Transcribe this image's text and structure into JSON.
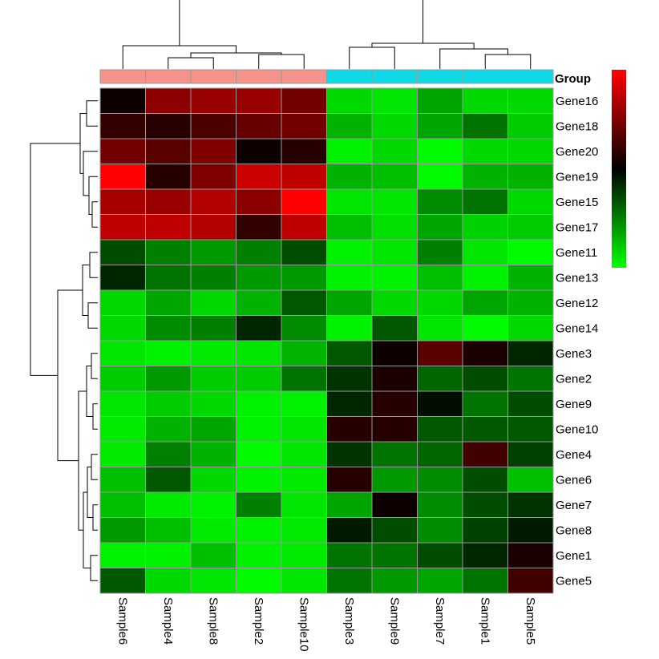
{
  "chart_data": {
    "type": "heatmap",
    "columns": [
      "Sample6",
      "Sample4",
      "Sample8",
      "Sample2",
      "Sample10",
      "Sample3",
      "Sample9",
      "Sample7",
      "Sample1",
      "Sample5"
    ],
    "rows": [
      "Gene16",
      "Gene18",
      "Gene20",
      "Gene19",
      "Gene15",
      "Gene17",
      "Gene11",
      "Gene13",
      "Gene12",
      "Gene14",
      "Gene3",
      "Gene2",
      "Gene9",
      "Gene10",
      "Gene4",
      "Gene6",
      "Gene7",
      "Gene8",
      "Gene1",
      "Gene5"
    ],
    "values": [
      [
        0.05,
        0.55,
        0.6,
        0.6,
        0.45,
        -0.85,
        -0.9,
        -0.65,
        -0.85,
        -0.85
      ],
      [
        0.2,
        0.15,
        0.3,
        0.4,
        0.45,
        -0.7,
        -0.85,
        -0.65,
        -0.45,
        -0.8
      ],
      [
        0.45,
        0.35,
        0.5,
        0.05,
        0.15,
        -0.95,
        -0.85,
        -0.98,
        -0.85,
        -0.85
      ],
      [
        1.0,
        0.15,
        0.5,
        0.8,
        0.75,
        -0.7,
        -0.75,
        -0.98,
        -0.7,
        -0.7
      ],
      [
        0.65,
        0.6,
        0.7,
        0.55,
        1.0,
        -0.9,
        -0.9,
        -0.55,
        -0.45,
        -0.85
      ],
      [
        0.75,
        0.75,
        0.7,
        0.2,
        0.75,
        -0.75,
        -0.88,
        -0.65,
        -0.82,
        -0.8
      ],
      [
        -0.3,
        -0.5,
        -0.6,
        -0.5,
        -0.3,
        -0.95,
        -0.9,
        -0.5,
        -0.9,
        -0.98
      ],
      [
        -0.15,
        -0.45,
        -0.5,
        -0.6,
        -0.6,
        -0.95,
        -0.95,
        -0.75,
        -0.95,
        -0.7
      ],
      [
        -0.85,
        -0.65,
        -0.85,
        -0.7,
        -0.35,
        -0.65,
        -0.85,
        -0.85,
        -0.65,
        -0.7
      ],
      [
        -0.85,
        -0.55,
        -0.5,
        -0.15,
        -0.55,
        -0.95,
        -0.35,
        -0.9,
        -0.98,
        -0.85
      ],
      [
        -0.9,
        -0.95,
        -0.92,
        -0.9,
        -0.7,
        -0.35,
        0.05,
        0.35,
        0.1,
        -0.15
      ],
      [
        -0.8,
        -0.6,
        -0.8,
        -0.8,
        -0.45,
        -0.2,
        0.1,
        -0.4,
        -0.3,
        -0.45
      ],
      [
        -0.9,
        -0.8,
        -0.85,
        -0.95,
        -0.95,
        -0.15,
        0.15,
        -0.05,
        -0.45,
        -0.3
      ],
      [
        -0.92,
        -0.7,
        -0.65,
        -0.95,
        -0.9,
        0.15,
        0.15,
        -0.35,
        -0.35,
        -0.35
      ],
      [
        -0.92,
        -0.5,
        -0.7,
        -0.98,
        -0.9,
        -0.2,
        -0.45,
        -0.4,
        0.25,
        -0.25
      ],
      [
        -0.75,
        -0.35,
        -0.85,
        -0.95,
        -0.92,
        0.15,
        -0.6,
        -0.55,
        -0.3,
        -0.75
      ],
      [
        -0.75,
        -0.92,
        -0.95,
        -0.5,
        -0.9,
        -0.65,
        0.05,
        -0.55,
        -0.3,
        -0.2
      ],
      [
        -0.6,
        -0.75,
        -0.92,
        -0.95,
        -0.92,
        -0.1,
        -0.3,
        -0.55,
        -0.25,
        -0.1
      ],
      [
        -0.95,
        -0.95,
        -0.75,
        -0.95,
        -0.92,
        -0.45,
        -0.45,
        -0.3,
        -0.15,
        0.1
      ],
      [
        -0.35,
        -0.85,
        -0.9,
        -0.98,
        -0.9,
        -0.45,
        -0.6,
        -0.65,
        -0.45,
        0.25
      ]
    ],
    "group": {
      "label": "Group",
      "assignments": [
        "A",
        "A",
        "A",
        "A",
        "A",
        "B",
        "B",
        "B",
        "B",
        "B"
      ],
      "colors": {
        "A": "#f4938c",
        "B": "#10d8e4"
      }
    },
    "color_scale": {
      "min_color": "#00ff00",
      "mid_color": "#000000",
      "max_color": "#ff0000",
      "domain": [
        -1,
        0,
        1
      ],
      "legend_position": "right",
      "tick_labels": false
    },
    "grid": true,
    "cell_border_color": "#9a9a9a",
    "row_dendrogram": true,
    "column_dendrogram": true
  }
}
